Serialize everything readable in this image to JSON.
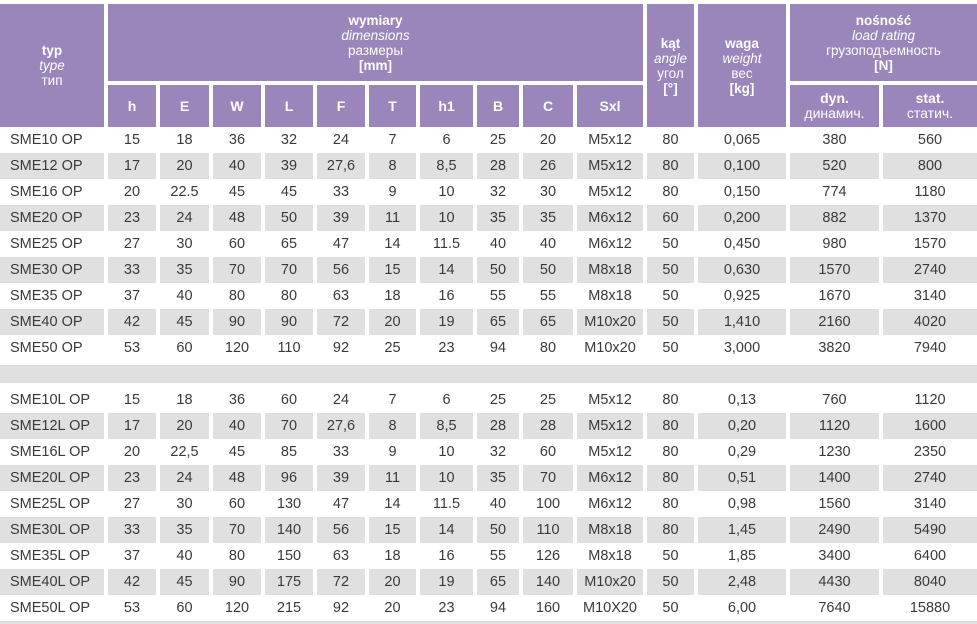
{
  "colors": {
    "header_purple": "#9a86ba",
    "row_alt_gray": "#e0e0e0",
    "body_text": "#3a3a3a",
    "header_text": "#ffffff"
  },
  "table": {
    "header": {
      "type_col": {
        "l1": "typ",
        "l2": "type",
        "l3": "тип"
      },
      "dimensions_group": {
        "l1": "wymiary",
        "l2": "dimensions",
        "l3": "размеры",
        "l4": "[mm]"
      },
      "dimension_columns": [
        "h",
        "E",
        "W",
        "L",
        "F",
        "T",
        "h1",
        "B",
        "C",
        "Sxl"
      ],
      "angle_col": {
        "l1": "kąt",
        "l2": "angle",
        "l3": "угол",
        "l4": "[°]"
      },
      "weight_col": {
        "l1": "waga",
        "l2": "weight",
        "l3": "вес",
        "l4": "[kg]"
      },
      "load_group": {
        "l1": "nośność",
        "l2": "load rating",
        "l3": "грузоподъемность",
        "l4": "[N]"
      },
      "load_columns": [
        {
          "l1": "dyn.",
          "l2": "динамич."
        },
        {
          "l1": "stat.",
          "l2": "статич."
        }
      ]
    },
    "blocks": [
      {
        "rows": [
          [
            "SME10 OP",
            "15",
            "18",
            "36",
            "32",
            "24",
            "7",
            "6",
            "25",
            "20",
            "M5x12",
            "80",
            "0,065",
            "380",
            "560"
          ],
          [
            "SME12 OP",
            "17",
            "20",
            "40",
            "39",
            "27,6",
            "8",
            "8,5",
            "28",
            "26",
            "M5x12",
            "80",
            "0,100",
            "520",
            "800"
          ],
          [
            "SME16 OP",
            "20",
            "22.5",
            "45",
            "45",
            "33",
            "9",
            "10",
            "32",
            "30",
            "M5x12",
            "80",
            "0,150",
            "774",
            "1180"
          ],
          [
            "SME20 OP",
            "23",
            "24",
            "48",
            "50",
            "39",
            "11",
            "10",
            "35",
            "35",
            "M6x12",
            "60",
            "0,200",
            "882",
            "1370"
          ],
          [
            "SME25 OP",
            "27",
            "30",
            "60",
            "65",
            "47",
            "14",
            "11.5",
            "40",
            "40",
            "M6x12",
            "50",
            "0,450",
            "980",
            "1570"
          ],
          [
            "SME30 OP",
            "33",
            "35",
            "70",
            "70",
            "56",
            "15",
            "14",
            "50",
            "50",
            "M8x18",
            "50",
            "0,630",
            "1570",
            "2740"
          ],
          [
            "SME35 OP",
            "37",
            "40",
            "80",
            "80",
            "63",
            "18",
            "16",
            "55",
            "55",
            "M8x18",
            "50",
            "0,925",
            "1670",
            "3140"
          ],
          [
            "SME40 OP",
            "42",
            "45",
            "90",
            "90",
            "72",
            "20",
            "19",
            "65",
            "65",
            "M10x20",
            "50",
            "1,410",
            "2160",
            "4020"
          ],
          [
            "SME50 OP",
            "53",
            "60",
            "120",
            "110",
            "92",
            "25",
            "23",
            "94",
            "80",
            "M10x20",
            "50",
            "3,000",
            "3820",
            "7940"
          ]
        ]
      },
      {
        "rows": [
          [
            "SME10L OP",
            "15",
            "18",
            "36",
            "60",
            "24",
            "7",
            "6",
            "25",
            "25",
            "M5x12",
            "80",
            "0,13",
            "760",
            "1120"
          ],
          [
            "SME12L OP",
            "17",
            "20",
            "40",
            "70",
            "27,6",
            "8",
            "8,5",
            "28",
            "28",
            "M5x12",
            "80",
            "0,20",
            "1120",
            "1600"
          ],
          [
            "SME16L OP",
            "20",
            "22,5",
            "45",
            "85",
            "33",
            "9",
            "10",
            "32",
            "60",
            "M5x12",
            "80",
            "0,29",
            "1230",
            "2350"
          ],
          [
            "SME20L OP",
            "23",
            "24",
            "48",
            "96",
            "39",
            "11",
            "10",
            "35",
            "70",
            "M6x12",
            "80",
            "0,51",
            "1400",
            "2740"
          ],
          [
            "SME25L OP",
            "27",
            "30",
            "60",
            "130",
            "47",
            "14",
            "11.5",
            "40",
            "100",
            "M6x12",
            "80",
            "0,98",
            "1560",
            "3140"
          ],
          [
            "SME30L OP",
            "33",
            "35",
            "70",
            "140",
            "56",
            "15",
            "14",
            "50",
            "110",
            "M8x18",
            "80",
            "1,45",
            "2490",
            "5490"
          ],
          [
            "SME35L OP",
            "37",
            "40",
            "80",
            "150",
            "63",
            "18",
            "16",
            "55",
            "126",
            "M8x18",
            "50",
            "1,85",
            "3400",
            "6400"
          ],
          [
            "SME40L OP",
            "42",
            "45",
            "90",
            "175",
            "72",
            "20",
            "19",
            "65",
            "140",
            "M10x20",
            "50",
            "2,48",
            "4430",
            "8040"
          ],
          [
            "SME50L OP",
            "53",
            "60",
            "120",
            "215",
            "92",
            "20",
            "23",
            "94",
            "160",
            "M10X20",
            "50",
            "6,00",
            "7640",
            "15880"
          ]
        ]
      }
    ]
  }
}
